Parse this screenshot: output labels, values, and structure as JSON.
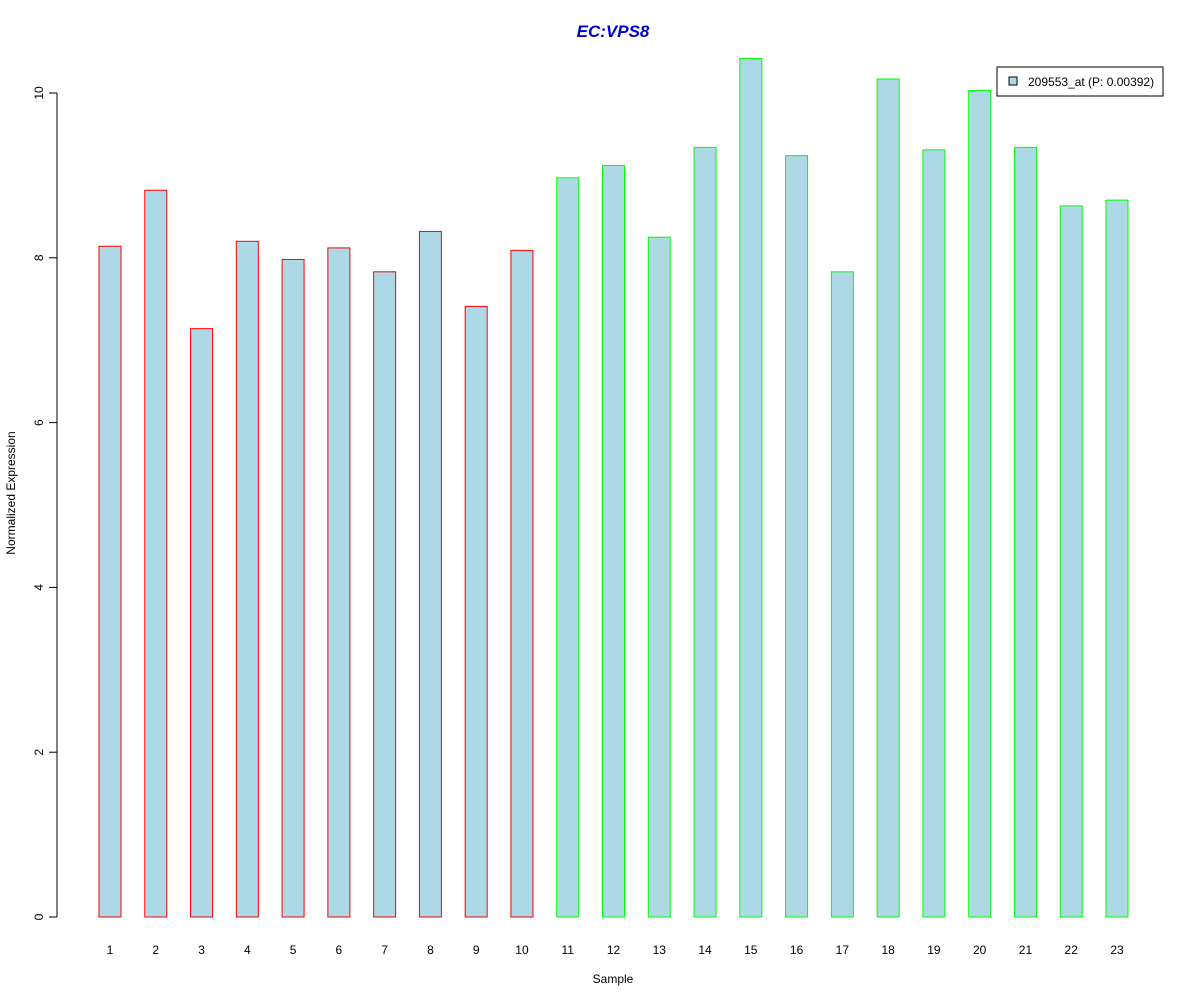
{
  "chart_data": {
    "type": "bar",
    "title": "EC:VPS8",
    "xlabel": "Sample",
    "ylabel": "Normalized Expression",
    "categories": [
      "1",
      "2",
      "3",
      "4",
      "5",
      "6",
      "7",
      "8",
      "9",
      "10",
      "11",
      "12",
      "13",
      "14",
      "15",
      "16",
      "17",
      "18",
      "19",
      "20",
      "21",
      "22",
      "23"
    ],
    "values": [
      8.14,
      8.82,
      7.14,
      8.2,
      7.98,
      8.12,
      7.83,
      8.32,
      7.41,
      8.09,
      8.97,
      9.12,
      8.25,
      9.34,
      10.42,
      9.24,
      7.83,
      10.17,
      9.31,
      10.03,
      9.34,
      8.63,
      8.7
    ],
    "groups": [
      "red",
      "red",
      "red",
      "red",
      "red",
      "red",
      "red",
      "red",
      "red",
      "red",
      "green",
      "green",
      "green",
      "green",
      "green",
      "green",
      "green",
      "green",
      "green",
      "green",
      "green",
      "green",
      "green"
    ],
    "series": [
      {
        "name": "209553_at (P: 0.00392)",
        "values": [
          8.14,
          8.82,
          7.14,
          8.2,
          7.98,
          8.12,
          7.83,
          8.32,
          7.41,
          8.09,
          8.97,
          9.12,
          8.25,
          9.34,
          10.42,
          9.24,
          7.83,
          10.17,
          9.31,
          10.03,
          9.34,
          8.63,
          8.7
        ]
      }
    ],
    "ylim": [
      0,
      10.42
    ],
    "yticks": [
      0,
      2,
      4,
      6,
      8,
      10
    ],
    "grid": false,
    "legend_position": "top-right",
    "colors": {
      "bar_fill": "#add8e6",
      "group_red": "#ff0000",
      "group_green": "#00ff00",
      "title": "#0000cd",
      "axis": "#000000"
    }
  }
}
